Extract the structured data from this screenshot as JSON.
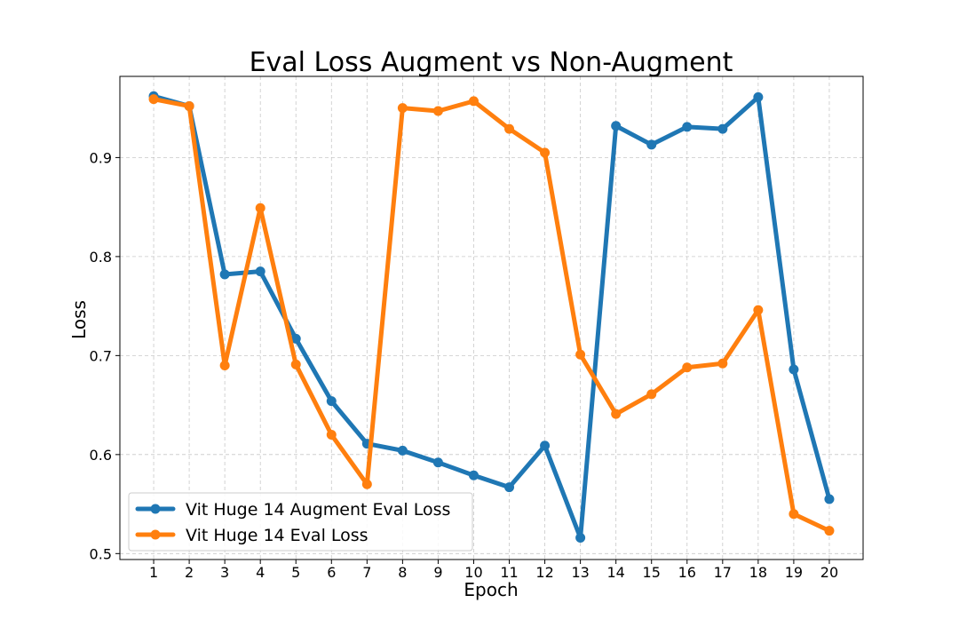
{
  "chart_data": {
    "type": "line",
    "title": "Eval Loss Augment vs Non-Augment",
    "xlabel": "Epoch",
    "ylabel": "Loss",
    "x": [
      1,
      2,
      3,
      4,
      5,
      6,
      7,
      8,
      9,
      10,
      11,
      12,
      13,
      14,
      15,
      16,
      17,
      18,
      19,
      20
    ],
    "xlim": [
      0.05,
      20.95
    ],
    "ylim": [
      0.494,
      0.982
    ],
    "yticks": [
      0.5,
      0.6,
      0.7,
      0.8,
      0.9
    ],
    "ytick_labels": [
      "0.5",
      "0.6",
      "0.7",
      "0.8",
      "0.9"
    ],
    "xtick_labels": [
      "1",
      "2",
      "3",
      "4",
      "5",
      "6",
      "7",
      "8",
      "9",
      "10",
      "11",
      "12",
      "13",
      "14",
      "15",
      "16",
      "17",
      "18",
      "19",
      "20"
    ],
    "grid": true,
    "legend_position": "lower-left",
    "series": [
      {
        "name": "Vit Huge 14 Augment Eval Loss",
        "color": "#1f77b4",
        "values": [
          0.962,
          0.952,
          0.782,
          0.785,
          0.717,
          0.654,
          0.611,
          0.604,
          0.592,
          0.579,
          0.567,
          0.609,
          0.516,
          0.932,
          0.913,
          0.931,
          0.929,
          0.961,
          0.686,
          0.555
        ]
      },
      {
        "name": "Vit Huge 14 Eval Loss",
        "color": "#ff7f0e",
        "values": [
          0.959,
          0.952,
          0.69,
          0.849,
          0.691,
          0.62,
          0.57,
          0.95,
          0.947,
          0.957,
          0.929,
          0.905,
          0.701,
          0.641,
          0.661,
          0.688,
          0.692,
          0.746,
          0.54,
          0.523
        ]
      }
    ]
  }
}
